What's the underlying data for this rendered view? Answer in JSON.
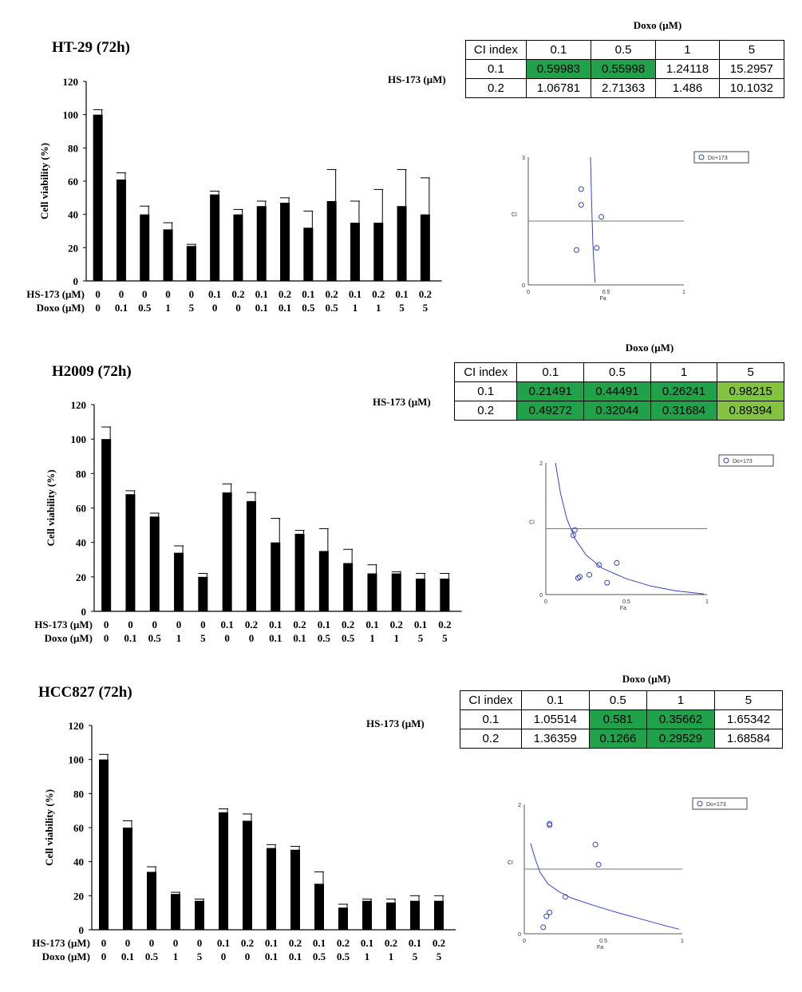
{
  "chart_data": [
    {
      "type": "bar",
      "title": "HT-29 (72h)",
      "ylabel": "Cell viability (%)",
      "ylim": [
        0,
        120
      ],
      "yticks": [
        "0",
        "20",
        "40",
        "60",
        "80",
        "100",
        "120"
      ],
      "row1_label": "HS-173 (μM)",
      "row2_label": "Doxo (μM)",
      "hs173": [
        "0",
        "0",
        "0",
        "0",
        "0",
        "0.1",
        "0.2",
        "0.1",
        "0.2",
        "0.1",
        "0.2",
        "0.1",
        "0.2",
        "0.1",
        "0.2"
      ],
      "doxo": [
        "0",
        "0.1",
        "0.5",
        "1",
        "5",
        "0",
        "0",
        "0.1",
        "0.1",
        "0.5",
        "0.5",
        "1",
        "1",
        "5",
        "5"
      ],
      "values": [
        100,
        61,
        40,
        31,
        21,
        52,
        40,
        45,
        47,
        32,
        48,
        35,
        35,
        45,
        40
      ],
      "errors": [
        3,
        4,
        5,
        4,
        1,
        2,
        3,
        3,
        3,
        10,
        19,
        13,
        20,
        22,
        22
      ],
      "ci_table": {
        "caption": "Doxo (μM)",
        "row_title": "HS-173 (μM)",
        "corner": "CI index",
        "cols": [
          "0.1",
          "0.5",
          "1",
          "5"
        ],
        "rows": [
          {
            "label": "0.1",
            "cells": [
              "0.59983",
              "0.55998",
              "1.24118",
              "15.2957"
            ],
            "fill": [
              "g",
              "g",
              "",
              ""
            ]
          },
          {
            "label": "0.2",
            "cells": [
              "1.06781",
              "2.71363",
              "1.486",
              "10.1032"
            ],
            "fill": [
              "",
              "",
              "",
              ""
            ]
          }
        ]
      },
      "ci_plot": {
        "type": "scatter",
        "legend": "Do+173",
        "ylabel": "CI",
        "xlabel": "Fa",
        "yticks": [
          "0",
          "3"
        ],
        "xticks": [
          "0",
          "0.5",
          "1"
        ],
        "ylim": [
          0,
          3
        ],
        "xlim": [
          0,
          1
        ],
        "reference_ci": 1.5,
        "points": [
          [
            0.34,
            2.25
          ],
          [
            0.34,
            1.88
          ],
          [
            0.47,
            1.6
          ],
          [
            0.31,
            0.82
          ],
          [
            0.44,
            0.87
          ]
        ],
        "curve": [
          [
            0.4,
            3.0
          ],
          [
            0.405,
            2.2
          ],
          [
            0.41,
            1.6
          ],
          [
            0.415,
            1.0
          ],
          [
            0.42,
            0.6
          ],
          [
            0.425,
            0.3
          ],
          [
            0.43,
            0.05
          ]
        ]
      }
    },
    {
      "type": "bar",
      "title": "H2009 (72h)",
      "ylabel": "Cell viability (%)",
      "ylim": [
        0,
        120
      ],
      "yticks": [
        "0",
        "20",
        "40",
        "60",
        "80",
        "100",
        "120"
      ],
      "row1_label": "HS-173 (μM)",
      "row2_label": "Doxo (μM)",
      "hs173": [
        "0",
        "0",
        "0",
        "0",
        "0",
        "0.1",
        "0.2",
        "0.1",
        "0.2",
        "0.1",
        "0.2",
        "0.1",
        "0.2",
        "0.1",
        "0.2"
      ],
      "doxo": [
        "0",
        "0.1",
        "0.5",
        "1",
        "5",
        "0",
        "0",
        "0.1",
        "0.1",
        "0.5",
        "0.5",
        "1",
        "1",
        "5",
        "5"
      ],
      "values": [
        100,
        68,
        55,
        34,
        20,
        69,
        64,
        40,
        45,
        35,
        28,
        22,
        22,
        19,
        19
      ],
      "errors": [
        7,
        2,
        2,
        4,
        2,
        5,
        5,
        14,
        2,
        13,
        8,
        5,
        1,
        3,
        3
      ],
      "ci_table": {
        "caption": "Doxo (μM)",
        "row_title": "HS-173 (μM)",
        "corner": "CI index",
        "cols": [
          "0.1",
          "0.5",
          "1",
          "5"
        ],
        "rows": [
          {
            "label": "0.1",
            "cells": [
              "0.21491",
              "0.44491",
              "0.26241",
              "0.98215"
            ],
            "fill": [
              "g",
              "g",
              "g",
              "lg"
            ]
          },
          {
            "label": "0.2",
            "cells": [
              "0.49272",
              "0.32044",
              "0.31684",
              "0.89394"
            ],
            "fill": [
              "g",
              "g",
              "g",
              "lg"
            ]
          }
        ]
      },
      "ci_plot": {
        "type": "scatter",
        "legend": "Do+173",
        "ylabel": "CI",
        "xlabel": "Fa",
        "yticks": [
          "0",
          "2"
        ],
        "xticks": [
          "0",
          "0.5",
          "1"
        ],
        "ylim": [
          0,
          2
        ],
        "xlim": [
          0,
          1
        ],
        "reference_ci": 1.0,
        "points": [
          [
            0.18,
            0.98
          ],
          [
            0.17,
            0.9
          ],
          [
            0.33,
            0.45
          ],
          [
            0.44,
            0.48
          ],
          [
            0.21,
            0.27
          ],
          [
            0.27,
            0.3
          ],
          [
            0.2,
            0.25
          ],
          [
            0.38,
            0.18
          ]
        ],
        "curve": [
          [
            0.06,
            2.0
          ],
          [
            0.09,
            1.55
          ],
          [
            0.13,
            1.15
          ],
          [
            0.18,
            0.85
          ],
          [
            0.25,
            0.6
          ],
          [
            0.35,
            0.4
          ],
          [
            0.5,
            0.24
          ],
          [
            0.65,
            0.13
          ],
          [
            0.8,
            0.06
          ],
          [
            0.98,
            0.01
          ]
        ]
      }
    },
    {
      "type": "bar",
      "title": "HCC827 (72h)",
      "ylabel": "Cell viability (%)",
      "ylim": [
        0,
        120
      ],
      "yticks": [
        "0",
        "20",
        "40",
        "60",
        "80",
        "100",
        "120"
      ],
      "row1_label": "HS-173 (μM)",
      "row2_label": "Doxo (μM)",
      "hs173": [
        "0",
        "0",
        "0",
        "0",
        "0",
        "0.1",
        "0.2",
        "0.1",
        "0.2",
        "0.1",
        "0.2",
        "0.1",
        "0.2",
        "0.1",
        "0.2"
      ],
      "doxo": [
        "0",
        "0.1",
        "0.5",
        "1",
        "5",
        "0",
        "0",
        "0.1",
        "0.1",
        "0.5",
        "0.5",
        "1",
        "1",
        "5",
        "5"
      ],
      "values": [
        100,
        60,
        34,
        21,
        17,
        69,
        64,
        48,
        47,
        27,
        13,
        17,
        16,
        17,
        17
      ],
      "errors": [
        3,
        4,
        3,
        1,
        1,
        2,
        4,
        2,
        2,
        7,
        2,
        1,
        2,
        3,
        3
      ],
      "ci_table": {
        "caption": "Doxo (μM)",
        "row_title": "HS-173 (μM)",
        "corner": "CI index",
        "cols": [
          "0.1",
          "0.5",
          "1",
          "5"
        ],
        "rows": [
          {
            "label": "0.1",
            "cells": [
              "1.05514",
              "0.581",
              "0.35662",
              "1.65342"
            ],
            "fill": [
              "",
              "g",
              "g",
              ""
            ]
          },
          {
            "label": "0.2",
            "cells": [
              "1.36359",
              "0.1266",
              "0.29529",
              "1.68584"
            ],
            "fill": [
              "",
              "g",
              "g",
              ""
            ]
          }
        ]
      },
      "ci_plot": {
        "type": "scatter",
        "legend": "Do+173",
        "ylabel": "CI",
        "xlabel": "Fa",
        "yticks": [
          "0",
          "2"
        ],
        "xticks": [
          "0",
          "0.5",
          "1"
        ],
        "ylim": [
          0,
          2
        ],
        "xlim": [
          0,
          1
        ],
        "reference_ci": 1.0,
        "points": [
          [
            0.16,
            1.7
          ],
          [
            0.16,
            1.68
          ],
          [
            0.45,
            1.38
          ],
          [
            0.47,
            1.07
          ],
          [
            0.16,
            0.33
          ],
          [
            0.14,
            0.27
          ],
          [
            0.26,
            0.57
          ],
          [
            0.12,
            0.1
          ]
        ],
        "curve": [
          [
            0.04,
            1.4
          ],
          [
            0.07,
            1.15
          ],
          [
            0.1,
            0.95
          ],
          [
            0.15,
            0.77
          ],
          [
            0.22,
            0.65
          ],
          [
            0.3,
            0.55
          ],
          [
            0.45,
            0.43
          ],
          [
            0.6,
            0.32
          ],
          [
            0.75,
            0.22
          ],
          [
            0.9,
            0.12
          ],
          [
            0.98,
            0.07
          ]
        ]
      }
    }
  ]
}
